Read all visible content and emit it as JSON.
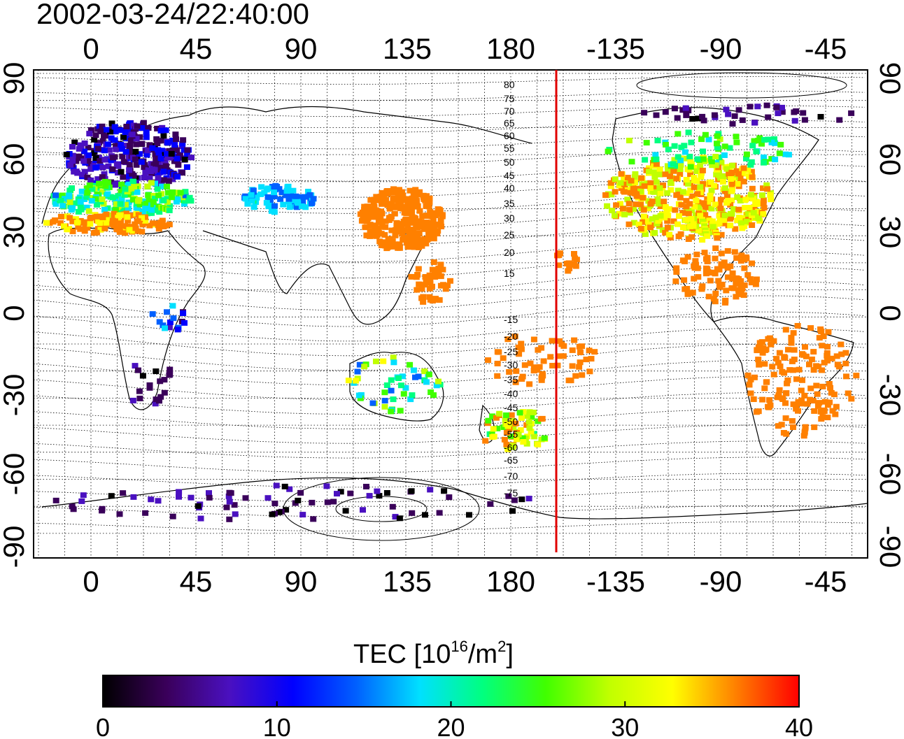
{
  "title": "2002-03-24/22:40:00",
  "map": {
    "lon_ticks": [
      "0",
      "45",
      "90",
      "135",
      "180",
      "-135",
      "-90",
      "-45"
    ],
    "lat_ticks": [
      "90",
      "60",
      "30",
      "0",
      "-30",
      "-60",
      "-90"
    ],
    "contour_labels": [
      "80",
      "75",
      "70",
      "65",
      "60",
      "55",
      "50",
      "45",
      "40",
      "35",
      "30",
      "25",
      "20",
      "15",
      "-15",
      "-20",
      "-25",
      "-30",
      "-35",
      "-40",
      "-45",
      "-50",
      "-55",
      "-60",
      "-65",
      "-70",
      "-75"
    ],
    "terminator_color": "#e00000"
  },
  "colorbar": {
    "label_text": "TEC  [10",
    "label_exp": "16",
    "label_mid": "/m",
    "label_exp2": "2",
    "label_end": "]",
    "ticks": [
      "0",
      "10",
      "20",
      "30",
      "40"
    ],
    "colors": [
      "#000000",
      "#3a005a",
      "#4a10c0",
      "#0000ff",
      "#0060ff",
      "#00e0ff",
      "#00ff80",
      "#40ff00",
      "#c0ff00",
      "#ffff00",
      "#ff8000",
      "#ff0000"
    ]
  }
}
